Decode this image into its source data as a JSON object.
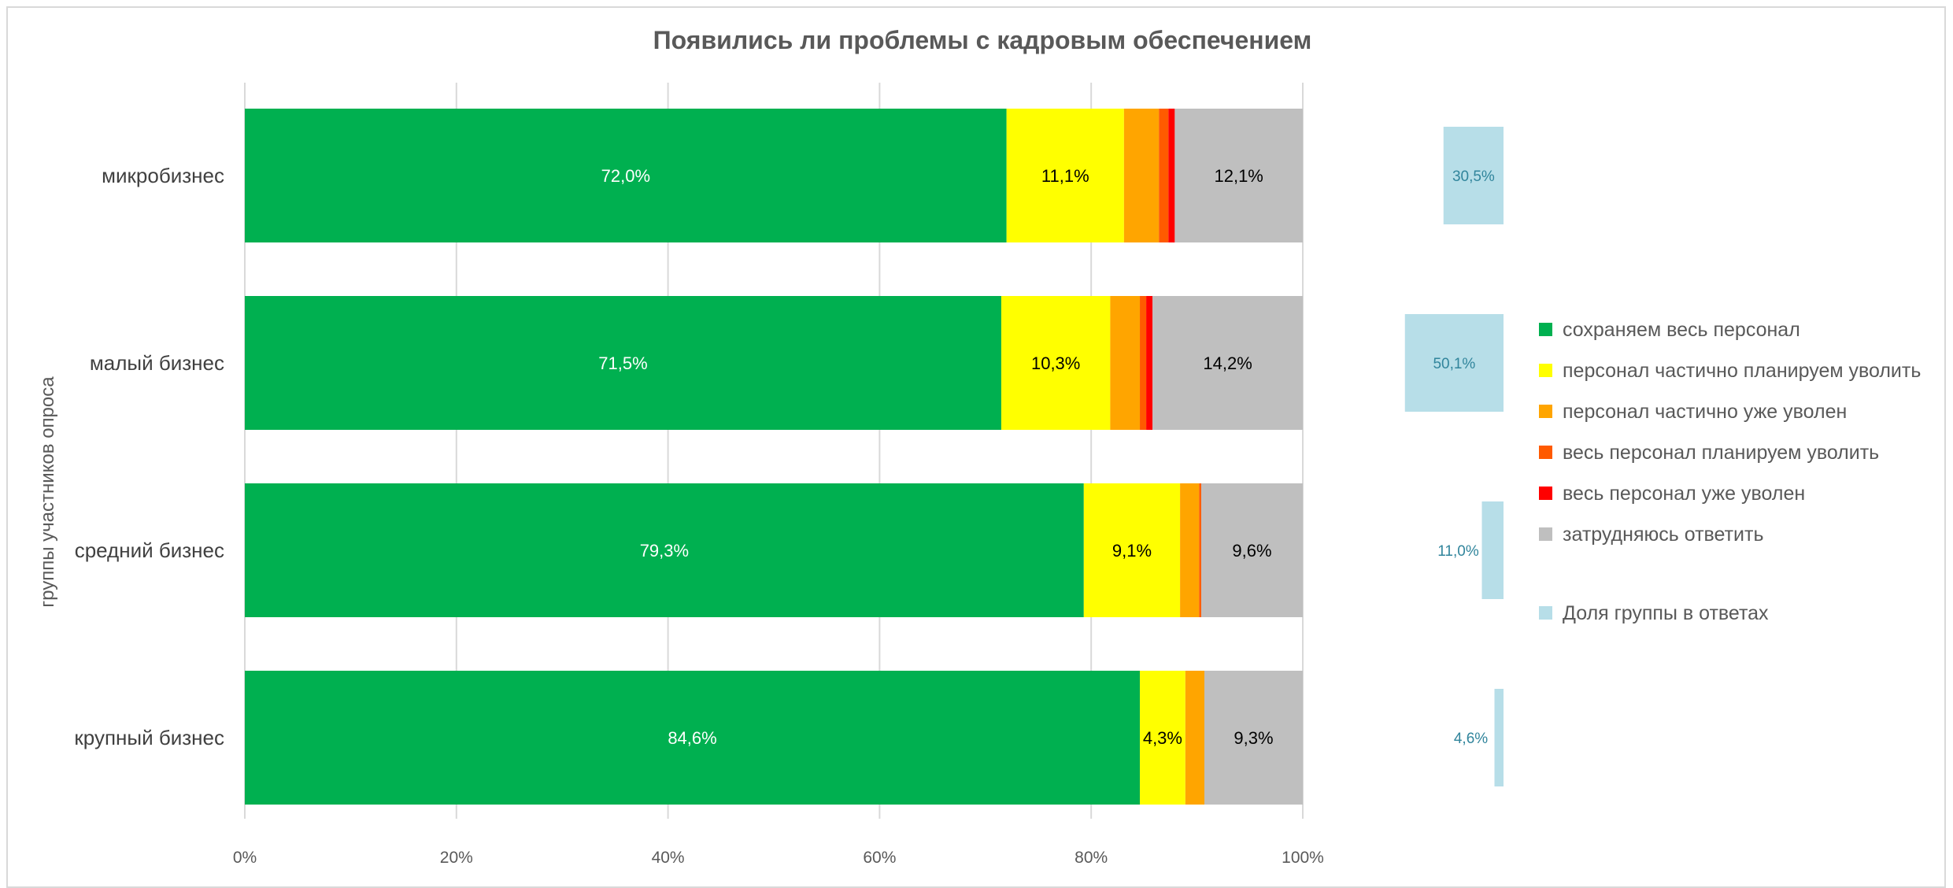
{
  "chart_data": {
    "type": "bar",
    "orientation": "horizontal",
    "stacked": true,
    "title": "Появились ли проблемы с кадровым обеспечением",
    "ylabel": "группы участников опроса",
    "xlabel": "",
    "xlim": [
      0,
      100
    ],
    "x_ticks": [
      "0%",
      "20%",
      "40%",
      "60%",
      "80%",
      "100%"
    ],
    "grid": true,
    "legend_position": "right",
    "categories": [
      "микробизнес",
      "малый бизнес",
      "средний бизнес",
      "крупный бизнес"
    ],
    "series": [
      {
        "name": "сохраняем весь персонал",
        "color": "#00b050",
        "label_color": "#ffffff",
        "values": [
          72.0,
          71.5,
          79.3,
          84.6
        ],
        "labels": [
          "72,0%",
          "71,5%",
          "79,3%",
          "84,6%"
        ]
      },
      {
        "name": "персонал частично планируем уволить",
        "color": "#ffff00",
        "label_color": "#000000",
        "values": [
          11.1,
          10.3,
          9.1,
          4.3
        ],
        "labels": [
          "11,1%",
          "10,3%",
          "9,1%",
          "4,3%"
        ]
      },
      {
        "name": "персонал частично уже уволен",
        "color": "#ffa500",
        "label_color": "#000000",
        "values": [
          3.3,
          2.8,
          1.8,
          1.8
        ],
        "labels": [
          "",
          "",
          "",
          ""
        ]
      },
      {
        "name": "весь персонал планируем уволить",
        "color": "#ff5a00",
        "label_color": "#000000",
        "values": [
          0.9,
          0.6,
          0.2,
          0.0
        ],
        "labels": [
          "",
          "",
          "",
          ""
        ]
      },
      {
        "name": "весь персонал уже уволен",
        "color": "#ff0000",
        "label_color": "#000000",
        "values": [
          0.6,
          0.6,
          0.0,
          0.0
        ],
        "labels": [
          "",
          "",
          "",
          ""
        ]
      },
      {
        "name": "затрудняюсь ответить",
        "color": "#bfbfbf",
        "label_color": "#000000",
        "values": [
          12.1,
          14.2,
          9.6,
          9.3
        ],
        "labels": [
          "12,1%",
          "14,2%",
          "9,6%",
          "9,3%"
        ]
      }
    ],
    "group_share": {
      "name": "Доля группы в ответах",
      "color": "#b7dee8",
      "label_color": "#31859c",
      "values": [
        30.5,
        50.1,
        11.0,
        4.6
      ],
      "labels": [
        "30,5%",
        "50,1%",
        "11,0%",
        "4,6%"
      ]
    }
  }
}
